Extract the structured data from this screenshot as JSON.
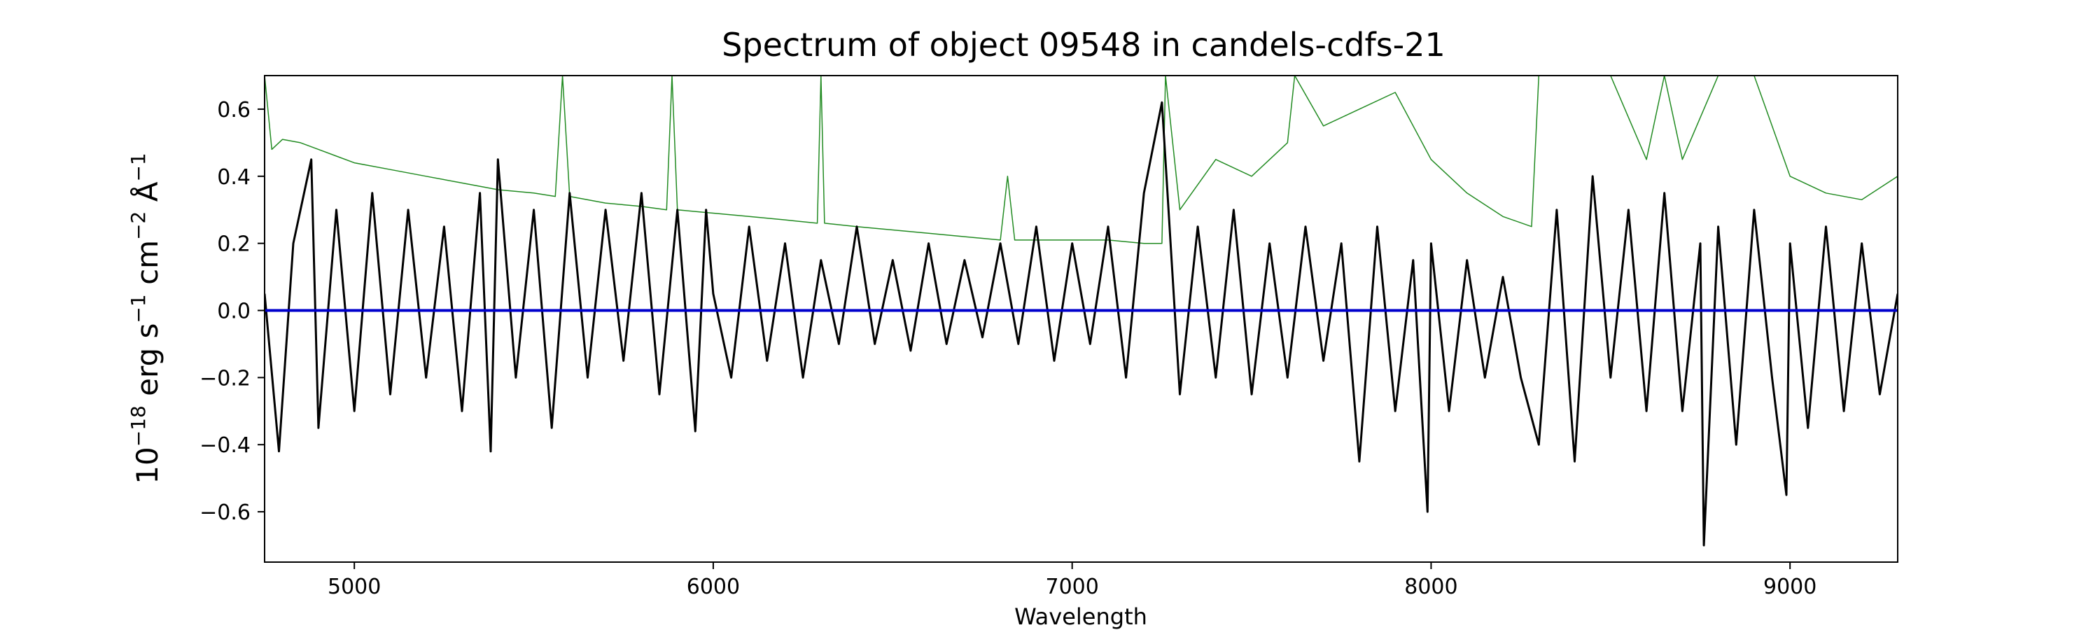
{
  "chart_data": {
    "type": "line",
    "title": "Spectrum of object 09548 in candels-cdfs-21",
    "xlabel": "Wavelength",
    "ylabel_base": "10",
    "ylabel_exp": "−18",
    "ylabel_rest": " erg s",
    "ylabel_exp2": "−1",
    "ylabel_rest2": " cm",
    "ylabel_exp3": "−2",
    "ylabel_rest3": " Å",
    "ylabel_exp4": "−1",
    "xlim": [
      4750,
      9300
    ],
    "ylim": [
      -0.75,
      0.7
    ],
    "x_ticks": [
      5000,
      6000,
      7000,
      8000,
      9000
    ],
    "x_tick_labels": [
      "5000",
      "6000",
      "7000",
      "8000",
      "9000"
    ],
    "y_ticks": [
      -0.6,
      -0.4,
      -0.2,
      0.0,
      0.2,
      0.4,
      0.6
    ],
    "y_tick_labels": [
      "−0.6",
      "−0.4",
      "−0.2",
      "0.0",
      "0.2",
      "0.4",
      "0.6"
    ],
    "grid": false,
    "series": [
      {
        "role": "error",
        "color": "#228B22",
        "x": [
          4750,
          4770,
          4800,
          4850,
          4900,
          4950,
          5000,
          5100,
          5200,
          5300,
          5400,
          5500,
          5560,
          5580,
          5600,
          5700,
          5800,
          5870,
          5885,
          5900,
          6000,
          6100,
          6200,
          6290,
          6300,
          6310,
          6400,
          6500,
          6600,
          6700,
          6800,
          6820,
          6840,
          6900,
          7000,
          7100,
          7200,
          7250,
          7260,
          7300,
          7400,
          7500,
          7600,
          7620,
          7700,
          7800,
          7900,
          8000,
          8100,
          8200,
          8280,
          8300,
          8400,
          8500,
          8600,
          8650,
          8700,
          8800,
          8850,
          8900,
          9000,
          9100,
          9200,
          9300
        ],
        "y": [
          0.7,
          0.48,
          0.51,
          0.5,
          0.48,
          0.46,
          0.44,
          0.42,
          0.4,
          0.38,
          0.36,
          0.35,
          0.34,
          0.7,
          0.34,
          0.32,
          0.31,
          0.3,
          0.7,
          0.3,
          0.29,
          0.28,
          0.27,
          0.26,
          0.7,
          0.26,
          0.25,
          0.24,
          0.23,
          0.22,
          0.21,
          0.4,
          0.21,
          0.21,
          0.21,
          0.21,
          0.2,
          0.2,
          0.7,
          0.3,
          0.45,
          0.4,
          0.5,
          0.7,
          0.55,
          0.6,
          0.65,
          0.45,
          0.35,
          0.28,
          0.25,
          0.7,
          0.7,
          0.7,
          0.45,
          0.7,
          0.45,
          0.7,
          0.7,
          0.7,
          0.4,
          0.35,
          0.33,
          0.4
        ]
      },
      {
        "role": "flux",
        "color": "#000000",
        "x": [
          4750,
          4790,
          4830,
          4880,
          4900,
          4950,
          5000,
          5050,
          5100,
          5150,
          5200,
          5250,
          5300,
          5350,
          5380,
          5400,
          5450,
          5500,
          5550,
          5600,
          5650,
          5700,
          5750,
          5800,
          5850,
          5900,
          5950,
          5980,
          6000,
          6050,
          6100,
          6150,
          6200,
          6250,
          6300,
          6350,
          6400,
          6450,
          6500,
          6550,
          6600,
          6650,
          6700,
          6750,
          6800,
          6850,
          6900,
          6950,
          7000,
          7050,
          7100,
          7150,
          7200,
          7250,
          7300,
          7350,
          7400,
          7450,
          7500,
          7550,
          7600,
          7650,
          7700,
          7750,
          7800,
          7850,
          7900,
          7950,
          7990,
          8000,
          8050,
          8100,
          8150,
          8200,
          8250,
          8300,
          8350,
          8400,
          8450,
          8500,
          8550,
          8600,
          8650,
          8700,
          8750,
          8760,
          8800,
          8850,
          8900,
          8950,
          8990,
          9000,
          9050,
          9100,
          9150,
          9200,
          9250,
          9300
        ],
        "y": [
          0.05,
          -0.42,
          0.2,
          0.45,
          -0.35,
          0.3,
          -0.3,
          0.35,
          -0.25,
          0.3,
          -0.2,
          0.25,
          -0.3,
          0.35,
          -0.42,
          0.45,
          -0.2,
          0.3,
          -0.35,
          0.35,
          -0.2,
          0.3,
          -0.15,
          0.35,
          -0.25,
          0.3,
          -0.36,
          0.3,
          0.05,
          -0.2,
          0.25,
          -0.15,
          0.2,
          -0.2,
          0.15,
          -0.1,
          0.25,
          -0.1,
          0.15,
          -0.12,
          0.2,
          -0.1,
          0.15,
          -0.08,
          0.2,
          -0.1,
          0.25,
          -0.15,
          0.2,
          -0.1,
          0.25,
          -0.2,
          0.35,
          0.62,
          -0.25,
          0.25,
          -0.2,
          0.3,
          -0.25,
          0.2,
          -0.2,
          0.25,
          -0.15,
          0.2,
          -0.45,
          0.25,
          -0.3,
          0.15,
          -0.6,
          0.2,
          -0.3,
          0.15,
          -0.2,
          0.1,
          -0.2,
          -0.4,
          0.3,
          -0.45,
          0.4,
          -0.2,
          0.3,
          -0.3,
          0.35,
          -0.3,
          0.2,
          -0.7,
          0.25,
          -0.4,
          0.3,
          -0.2,
          -0.55,
          0.2,
          -0.35,
          0.25,
          -0.3,
          0.2,
          -0.25,
          0.05
        ]
      },
      {
        "role": "model",
        "color": "#0000CC",
        "x": [
          4750,
          9300
        ],
        "y": [
          0.0,
          0.0
        ]
      }
    ]
  }
}
